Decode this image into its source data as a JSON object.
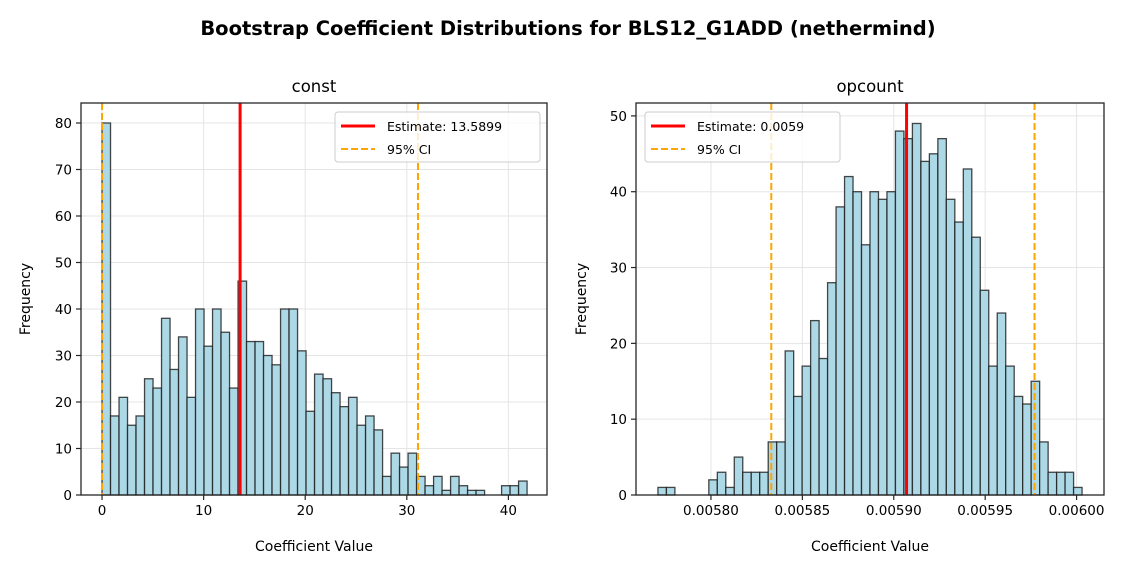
{
  "figure_title": "Bootstrap Coefficient Distributions for BLS12_G1ADD (nethermind)",
  "colors": {
    "bar_fill": "#add8e6",
    "bar_edge": "#1a1a1a",
    "estimate": "#ff0000",
    "ci": "#ffa500",
    "grid": "#e5e5e5"
  },
  "chart_data": [
    {
      "type": "bar",
      "title": "const",
      "xlabel": "Coefficient Value",
      "ylabel": "Frequency",
      "xlim": [
        -2.07,
        43.8
      ],
      "ylim": [
        0,
        84.3
      ],
      "xticks": [
        0,
        10,
        20,
        30,
        40
      ],
      "xtick_labels": [
        "0",
        "10",
        "20",
        "30",
        "40"
      ],
      "yticks": [
        0,
        10,
        20,
        30,
        40,
        50,
        60,
        70,
        80
      ],
      "ytick_labels": [
        "0",
        "10",
        "20",
        "30",
        "40",
        "50",
        "60",
        "70",
        "80"
      ],
      "grid": true,
      "bin_start": 0.0,
      "bin_end": 41.84,
      "counts": [
        80,
        17,
        21,
        15,
        17,
        25,
        23,
        38,
        27,
        34,
        21,
        40,
        32,
        40,
        35,
        23,
        46,
        33,
        33,
        30,
        28,
        40,
        40,
        31,
        18,
        26,
        25,
        22,
        19,
        21,
        15,
        17,
        14,
        4,
        9,
        6,
        9,
        4,
        2,
        4,
        1,
        4,
        2,
        1,
        1,
        0,
        0,
        2,
        2,
        3
      ],
      "estimate": 13.5899,
      "ci": [
        0.0,
        31.1
      ],
      "legend": {
        "placement": "upper right",
        "entries": [
          "Estimate: 13.5899",
          "95% CI"
        ]
      }
    },
    {
      "type": "bar",
      "title": "opcount",
      "xlabel": "Coefficient Value",
      "ylabel": "Frequency",
      "xlim": [
        0.005759,
        0.006015
      ],
      "ylim": [
        0,
        51.7
      ],
      "xticks": [
        0.0058,
        0.00585,
        0.0059,
        0.00595,
        0.006
      ],
      "xtick_labels": [
        "0.00580",
        "0.00585",
        "0.00590",
        "0.00595",
        "0.00600"
      ],
      "yticks": [
        0,
        10,
        20,
        30,
        40,
        50
      ],
      "ytick_labels": [
        "0",
        "10",
        "20",
        "30",
        "40",
        "50"
      ],
      "grid": true,
      "bin_start": 0.005771,
      "bin_end": 0.006003,
      "counts": [
        1,
        1,
        0,
        0,
        0,
        0,
        2,
        3,
        1,
        5,
        3,
        3,
        3,
        7,
        7,
        19,
        13,
        17,
        23,
        18,
        28,
        38,
        42,
        40,
        33,
        40,
        39,
        40,
        48,
        47,
        49,
        44,
        45,
        47,
        39,
        36,
        43,
        34,
        27,
        17,
        24,
        17,
        13,
        12,
        15,
        7,
        3,
        3,
        3,
        1
      ],
      "estimate": 0.005907,
      "ci": [
        0.005833,
        0.005977
      ],
      "legend": {
        "placement": "upper left",
        "entries": [
          "Estimate: 0.0059",
          "95% CI"
        ]
      }
    }
  ]
}
